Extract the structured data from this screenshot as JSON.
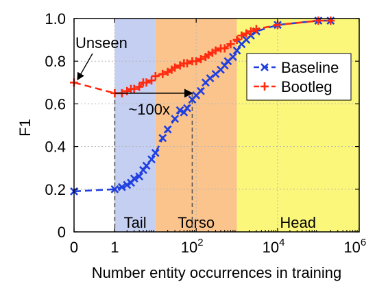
{
  "chart_data": {
    "type": "line",
    "title": "",
    "xlabel": "Number entity occurrences in training",
    "ylabel": "F1",
    "x_scale": "symlog",
    "xlim": [
      0,
      1000000
    ],
    "ylim": [
      0,
      1.0
    ],
    "x_ticks": [
      {
        "value": 0,
        "label": "0"
      },
      {
        "value": 1,
        "label": "1"
      },
      {
        "value": 100,
        "label": "10",
        "exp": "2"
      },
      {
        "value": 10000,
        "label": "10",
        "exp": "4"
      },
      {
        "value": 1000000,
        "label": "10",
        "exp": "6"
      }
    ],
    "y_ticks": [
      {
        "value": 0,
        "label": "0"
      },
      {
        "value": 0.2,
        "label": "0.2"
      },
      {
        "value": 0.4,
        "label": "0.4"
      },
      {
        "value": 0.6,
        "label": "0.6"
      },
      {
        "value": 0.8,
        "label": "0.8"
      },
      {
        "value": 1.0,
        "label": "1.0"
      }
    ],
    "grid": true,
    "legend_position": "right",
    "regions": [
      {
        "label": "Tail",
        "x_start": 1,
        "x_end": 10,
        "color": "#c4cff2"
      },
      {
        "label": "Torso",
        "x_start": 10,
        "x_end": 1000,
        "color": "#fbc48c"
      },
      {
        "label": "Head",
        "x_start": 1000,
        "x_end": 1000000,
        "color": "#fbf77a"
      }
    ],
    "series": [
      {
        "name": "Baseline",
        "color": "#1f3fe0",
        "marker": "x",
        "x": [
          0,
          1,
          1.5,
          2,
          2.5,
          3,
          4,
          5,
          6,
          8,
          10,
          15,
          20,
          30,
          40,
          50,
          60,
          80,
          100,
          130,
          170,
          220,
          300,
          400,
          500,
          600,
          800,
          1000,
          1300,
          1700,
          2200,
          3000,
          10000,
          100000,
          200000
        ],
        "y": [
          0.19,
          0.2,
          0.21,
          0.22,
          0.23,
          0.25,
          0.26,
          0.29,
          0.31,
          0.34,
          0.37,
          0.44,
          0.48,
          0.53,
          0.57,
          0.56,
          0.58,
          0.62,
          0.64,
          0.66,
          0.7,
          0.72,
          0.74,
          0.76,
          0.78,
          0.8,
          0.82,
          0.85,
          0.88,
          0.9,
          0.92,
          0.94,
          0.97,
          0.99,
          0.99
        ]
      },
      {
        "name": "Bootleg",
        "color": "#ff2a0f",
        "marker": "+",
        "x": [
          0,
          1,
          1.5,
          2,
          2.5,
          3,
          4,
          5,
          6,
          8,
          10,
          15,
          20,
          25,
          30,
          40,
          50,
          60,
          80,
          100,
          130,
          170,
          200,
          250,
          300,
          400,
          500,
          700,
          1000,
          1300,
          1700,
          2200,
          3000,
          10000,
          100000,
          200000
        ],
        "y": [
          0.7,
          0.65,
          0.65,
          0.66,
          0.67,
          0.67,
          0.68,
          0.7,
          0.7,
          0.71,
          0.73,
          0.74,
          0.75,
          0.76,
          0.77,
          0.78,
          0.79,
          0.79,
          0.8,
          0.8,
          0.81,
          0.82,
          0.83,
          0.84,
          0.85,
          0.86,
          0.86,
          0.88,
          0.9,
          0.92,
          0.93,
          0.94,
          0.95,
          0.97,
          0.99,
          0.99
        ]
      }
    ],
    "annotations": [
      {
        "text": "Unseen",
        "x": 0,
        "y": 0.7,
        "type": "arrow-label"
      },
      {
        "text": "~100x",
        "x_start": 1,
        "x_end": 80,
        "y": 0.65,
        "type": "span-arrow"
      }
    ]
  }
}
